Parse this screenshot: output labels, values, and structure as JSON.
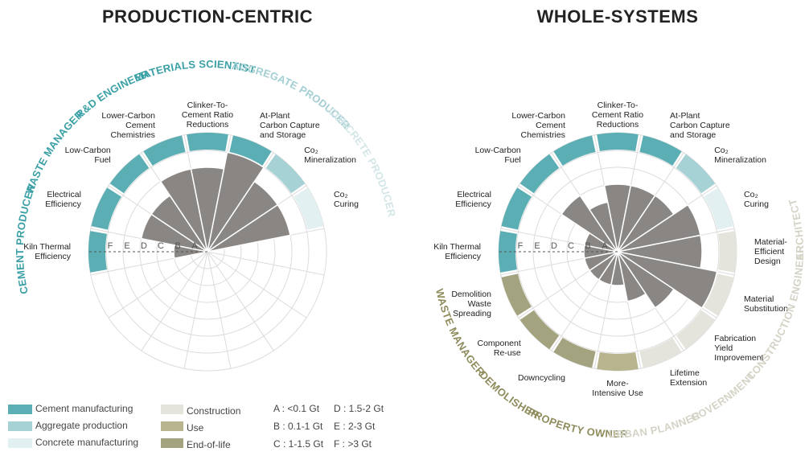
{
  "charts": [
    {
      "title": "PRODUCTION-CENTRIC",
      "scale_letters": [
        "A",
        "B",
        "C",
        "D",
        "E",
        "F"
      ],
      "segments": [
        {
          "label": [
            "Kiln Thermal",
            "Efficiency"
          ],
          "color": "#5bafb4",
          "level": 2
        },
        {
          "label": [
            "Electrical",
            "Efficiency"
          ],
          "color": "#5bafb4",
          "level": 4
        },
        {
          "label": [
            "Low-Carbon",
            "Fuel"
          ],
          "color": "#5bafb4",
          "level": 4
        },
        {
          "label": [
            "Lower-Carbon",
            "Cement",
            "Chemistries"
          ],
          "color": "#5bafb4",
          "level": 5
        },
        {
          "label": [
            "Clinker-To-",
            "Cement Ratio",
            "Reductions"
          ],
          "color": "#5bafb4",
          "level": 5
        },
        {
          "label": [
            "At-Plant",
            "Carbon Capture",
            "and Storage"
          ],
          "color": "#5bafb4",
          "level": 6
        },
        {
          "label": [
            "Co₂",
            "Mineralization"
          ],
          "color": "#a7d2d5",
          "level": 5
        },
        {
          "label": [
            "Co₂",
            "Curing"
          ],
          "color": "#e3f0f1",
          "level": 5
        }
      ],
      "stakeholders": [
        {
          "label": "CEMENT PRODUCER",
          "color": "#3aa0a6"
        },
        {
          "label": "WASTE MANAGER",
          "color": "#3aa0a6"
        },
        {
          "label": "R&D ENGINEER",
          "color": "#3aa0a6"
        },
        {
          "label": "MATERIALS SCIENTIST",
          "color": "#3aa0a6"
        },
        {
          "label": "AGGREGATE PRODUCER",
          "color": "#a3cfd3"
        },
        {
          "label": "CONCRETE PRODUCER",
          "color": "#d3e6e8"
        }
      ]
    },
    {
      "title": "WHOLE-SYSTEMS",
      "scale_letters": [
        "A",
        "B",
        "C",
        "D",
        "E",
        "F"
      ],
      "segments": [
        {
          "label": [
            "Kiln Thermal",
            "Efficiency"
          ],
          "color": "#5bafb4",
          "level": 2
        },
        {
          "label": [
            "Electrical",
            "Efficiency"
          ],
          "color": "#5bafb4",
          "level": 2
        },
        {
          "label": [
            "Low-Carbon",
            "Fuel"
          ],
          "color": "#5bafb4",
          "level": 4
        },
        {
          "label": [
            "Lower-Carbon",
            "Cement",
            "Chemistries"
          ],
          "color": "#5bafb4",
          "level": 3
        },
        {
          "label": [
            "Clinker-To-",
            "Cement Ratio",
            "Reductions"
          ],
          "color": "#5bafb4",
          "level": 4
        },
        {
          "label": [
            "At-Plant",
            "Carbon Capture",
            "and Storage"
          ],
          "color": "#5bafb4",
          "level": 4
        },
        {
          "label": [
            "Co₂",
            "Mineralization"
          ],
          "color": "#a7d2d5",
          "level": 4
        },
        {
          "label": [
            "Co₂",
            "Curing"
          ],
          "color": "#e3f0f1",
          "level": 5
        },
        {
          "label": [
            "Material-",
            "Efficient",
            "Design"
          ],
          "color": "#e5e4dc",
          "level": 5
        },
        {
          "label": [
            "Material",
            "Substitution"
          ],
          "color": "#e5e4dc",
          "level": 6
        },
        {
          "label": [
            "Fabrication",
            "Yield",
            "Improvement"
          ],
          "color": "#e5e4dc",
          "level": 4
        },
        {
          "label": [
            "Lifetime",
            "Extension"
          ],
          "color": "#e5e4dc",
          "level": 3
        },
        {
          "label": [
            "More-",
            "Intensive Use"
          ],
          "color": "#b8b48e",
          "level": 2
        },
        {
          "label": [
            "Downcycling"
          ],
          "color": "#a3a37f",
          "level": 2
        },
        {
          "label": [
            "Component",
            "Re-use"
          ],
          "color": "#a3a37f",
          "level": 2
        },
        {
          "label": [
            "Demolition",
            "Waste",
            "Spreading"
          ],
          "color": "#a3a37f",
          "level": 2
        }
      ],
      "stakeholders": [
        {
          "label": "WASTE MANAGER",
          "color": "#8e8c5c"
        },
        {
          "label": "DEMOLISHER",
          "color": "#8e8c5c"
        },
        {
          "label": "PROPERTY OWNER",
          "color": "#8e8c5c"
        },
        {
          "label": "URBAN PLANNER",
          "color": "#d5d3c6"
        },
        {
          "label": "GOVERNMENT",
          "color": "#d5d3c6"
        },
        {
          "label": "CONSTRUCTION ENGINEER",
          "color": "#d5d3c6"
        },
        {
          "label": "ARCHITECT",
          "color": "#d5d3c6"
        }
      ]
    }
  ],
  "legend": [
    {
      "label": "Cement manufacturing",
      "color": "#5bafb4"
    },
    {
      "label": "Aggregate production",
      "color": "#a7d2d5"
    },
    {
      "label": "Concrete manufacturing",
      "color": "#e3f0f1"
    },
    {
      "label": "Construction",
      "color": "#e5e4dc"
    },
    {
      "label": "Use",
      "color": "#b8b48e"
    },
    {
      "label": "End-of-life",
      "color": "#a3a37f"
    }
  ],
  "scale": [
    "A : <0.1 Gt",
    "B : 0.1-1 Gt",
    "C : 1-1.5 Gt",
    "D : 1.5-2 Gt",
    "E : 2-3 Gt",
    "F : >3 Gt"
  ]
}
